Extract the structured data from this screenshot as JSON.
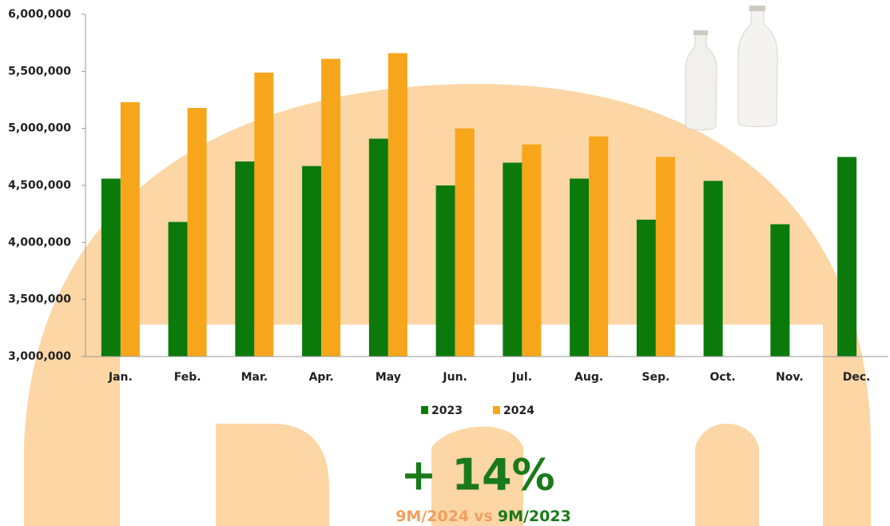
{
  "chart_data": {
    "type": "bar",
    "categories": [
      "Jan.",
      "Feb.",
      "Mar.",
      "Apr.",
      "May",
      "Jun.",
      "Jul.",
      "Aug.",
      "Sep.",
      "Oct.",
      "Nov.",
      "Dec."
    ],
    "series": [
      {
        "name": "2023",
        "color": "#0b7a0b",
        "values": [
          4560000,
          4180000,
          4710000,
          4670000,
          4910000,
          4500000,
          4700000,
          4560000,
          4200000,
          4540000,
          4160000,
          4750000
        ]
      },
      {
        "name": "2024",
        "color": "#f7a61c",
        "values": [
          5230000,
          5180000,
          5490000,
          5610000,
          5660000,
          5000000,
          4860000,
          4930000,
          4750000,
          null,
          null,
          null
        ]
      }
    ],
    "ylim": [
      3000000,
      6000000
    ],
    "yticks": [
      {
        "value": 3000000,
        "label": "3,000,000"
      },
      {
        "value": 3500000,
        "label": "3,500,000"
      },
      {
        "value": 4000000,
        "label": "4,000,000"
      },
      {
        "value": 4500000,
        "label": "4,500,000"
      },
      {
        "value": 5000000,
        "label": "5,000,000"
      },
      {
        "value": 5500000,
        "label": "5,500,000"
      },
      {
        "value": 6000000,
        "label": "6,000,000"
      }
    ],
    "grid": false,
    "legend": "bottom",
    "annotation": {
      "headline": "+ 14%",
      "comparison": [
        "9M/2024",
        "vs",
        "9M/2023"
      ]
    }
  }
}
